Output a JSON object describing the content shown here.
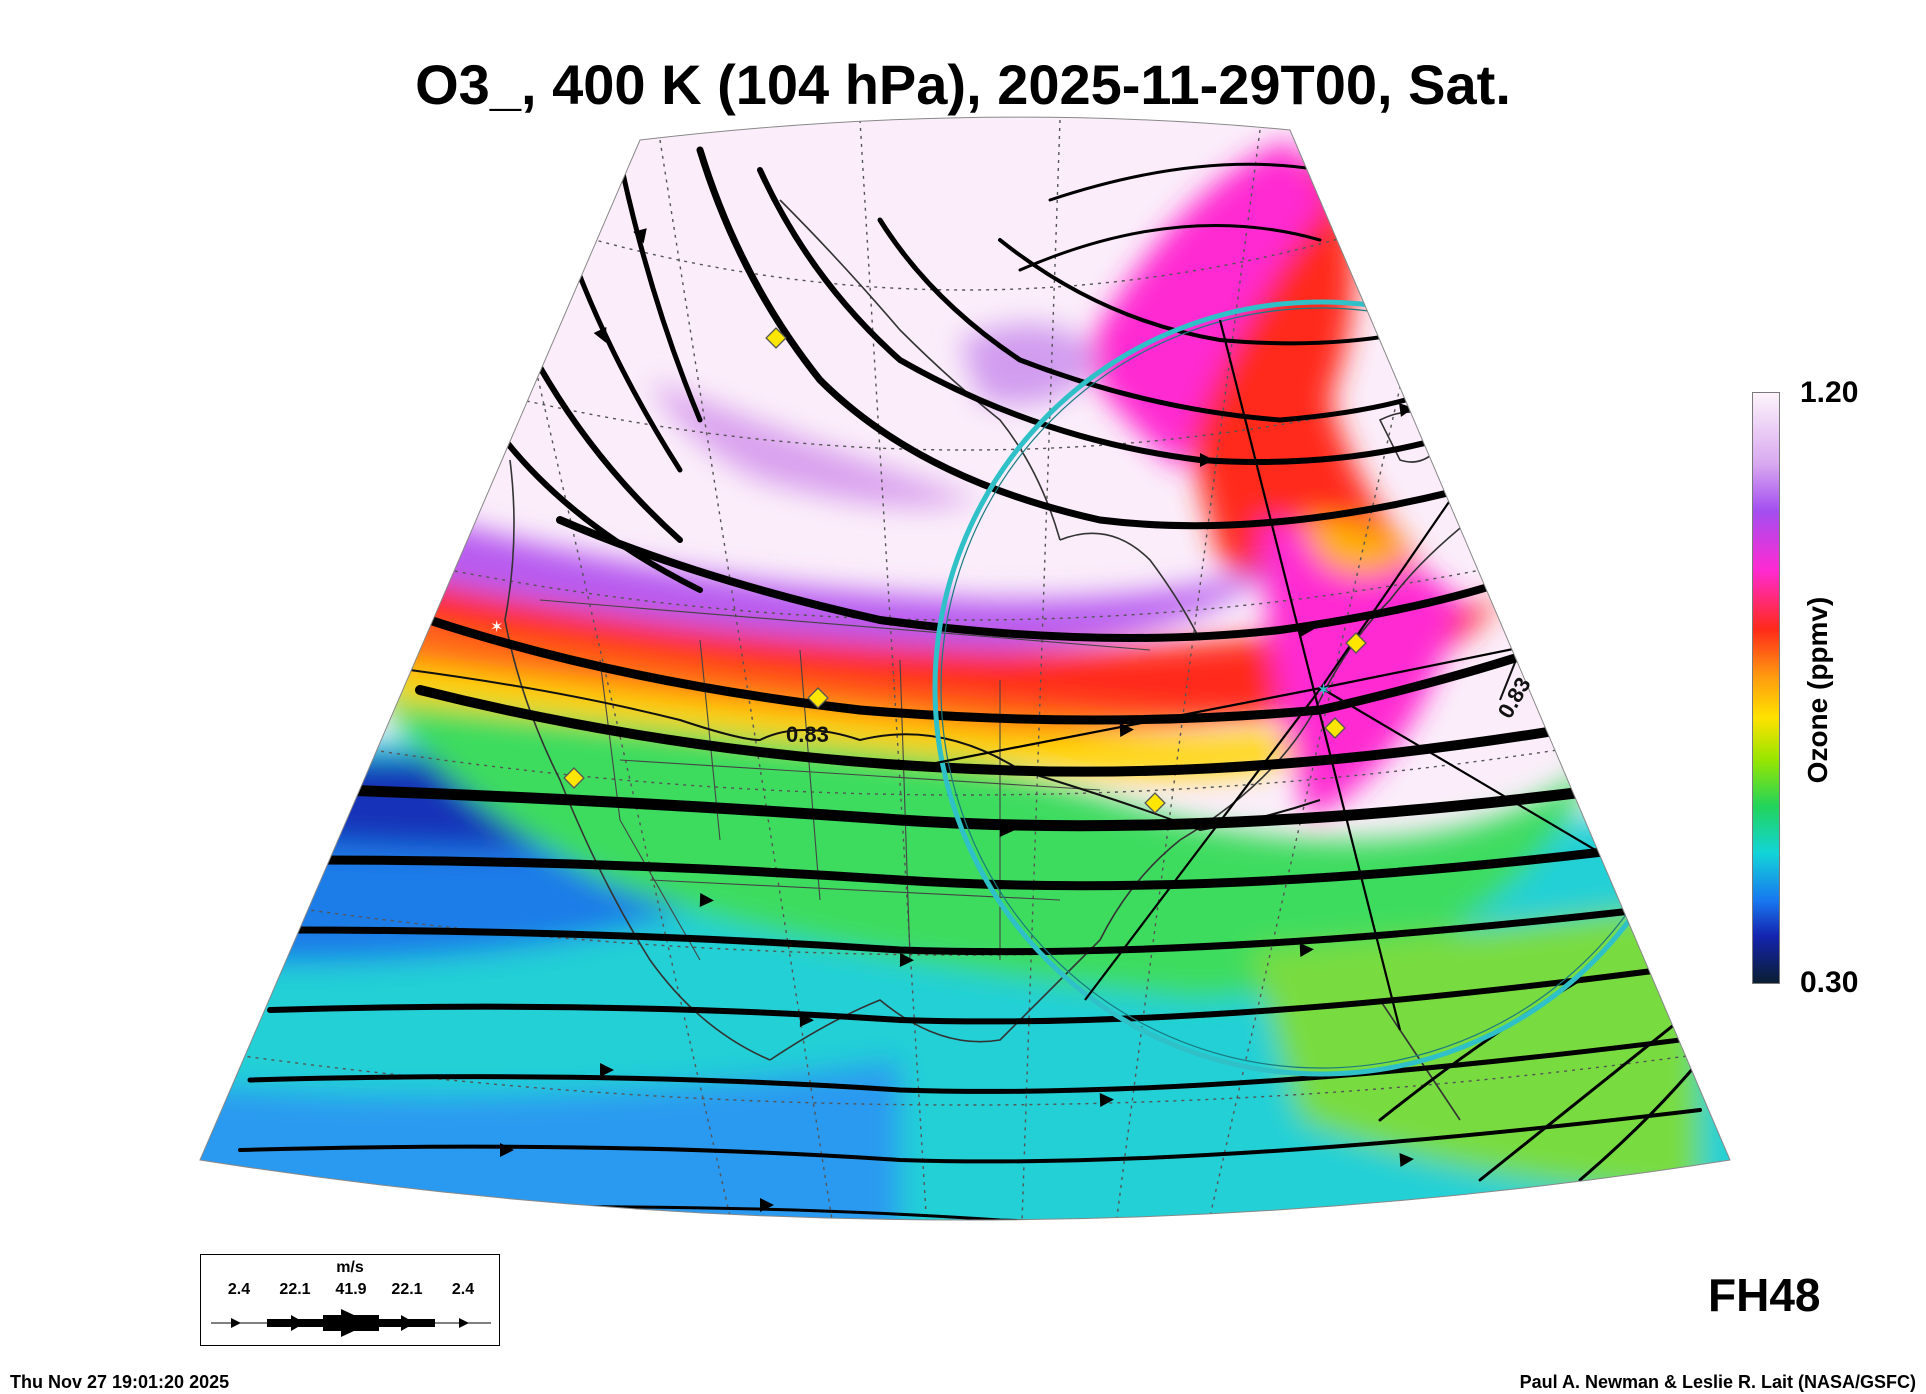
{
  "title": "O3_, 400 K (104 hPa), 2025-11-29T00, Sat.",
  "colorbar": {
    "max_label": "1.20",
    "min_label": "0.30",
    "title": "Ozone (ppmv)",
    "range": [
      0.3,
      1.2
    ],
    "colors": [
      "#fdf4fb",
      "#d9a9f0",
      "#a34ef0",
      "#ff2ad2",
      "#ff2a1a",
      "#ff9a10",
      "#ffe200",
      "#9ae600",
      "#22d45a",
      "#12d4d8",
      "#1878f0",
      "#1424b0",
      "#0a1e32"
    ]
  },
  "contour_label": "0.83",
  "forecast_hour": "FH48",
  "wind_legend": {
    "unit": "m/s",
    "values": [
      "2.4",
      "22.1",
      "41.9",
      "22.1",
      "2.4"
    ]
  },
  "footer": {
    "date": "Thu Nov 27 19:01:20 2025",
    "credit": "Paul A. Newman & Leslie R. Lait (NASA/GSFC)"
  },
  "map": {
    "projection": "polar stereographic sector over North America",
    "highlight_circle_color": "#2fc0c8",
    "station_marker_color": "#ffe600"
  }
}
